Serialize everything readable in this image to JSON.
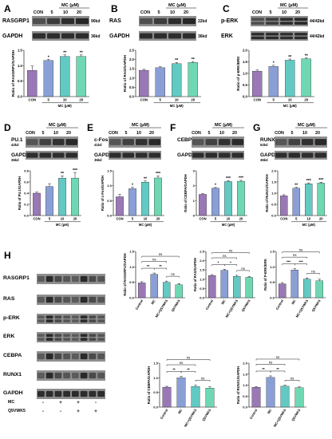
{
  "colors": {
    "con": "#9a78b5",
    "mc5": "#8a9fd6",
    "mc10": "#62c9c3",
    "mc20": "#6fd8b2",
    "h_control": "#9a78b5",
    "h_mc": "#8a9fd6",
    "h_mc_q": "#62c9c3",
    "h_q": "#6fd8b2"
  },
  "top_panels": [
    {
      "letter": "A",
      "protein_label": "RASGRP1",
      "protein_kd": "90kd",
      "loading_label": "GAPDH",
      "loading_kd": "36kd",
      "header_groups": "MC  (μM)",
      "header_lanes": [
        "CON",
        "5",
        "10",
        "20"
      ]
    },
    {
      "letter": "B",
      "protein_label": "RAS",
      "protein_kd": "22kd",
      "loading_label": "GAPDH",
      "loading_kd": "36kd",
      "header_groups": "MC  (μM)",
      "header_lanes": [
        "CON",
        "5",
        "10",
        "20"
      ]
    },
    {
      "letter": "C",
      "protein_label": "p-ERK",
      "protein_kd": "44/42kd",
      "loading_label": "ERK",
      "loading_kd": "44/42kd",
      "header_groups": "MC  (μM)",
      "header_lanes": [
        "CON",
        "5",
        "10",
        "20"
      ]
    }
  ],
  "mid_panels": [
    {
      "letter": "D",
      "protein_label": "PU.1",
      "protein_kd": "42kd",
      "loading_label": "GAPDH",
      "loading_kd": "36kd",
      "header_groups": "MC  (μM)",
      "header_lanes": [
        "CON",
        "5",
        "10",
        "20"
      ]
    },
    {
      "letter": "E",
      "protein_label": "c-Fos",
      "protein_kd": "41kd",
      "loading_label": "GAPDH",
      "loading_kd": "36kd",
      "header_groups": "MC  (μM)",
      "header_lanes": [
        "CON",
        "5",
        "10",
        "20"
      ]
    },
    {
      "letter": "F",
      "protein_label": "CEBPA",
      "protein_kd": "",
      "loading_label": "GAPDH",
      "loading_kd": "",
      "header_groups": "MC  (μM)",
      "header_lanes": [
        "CON",
        "5",
        "10",
        "20"
      ]
    },
    {
      "letter": "G",
      "protein_label": "RUNX1",
      "protein_kd": "52kd",
      "loading_label": "GAPDH",
      "loading_kd": "36kd",
      "header_groups": "MC  (μM)",
      "header_lanes": [
        "CON",
        "5",
        "10",
        "20"
      ]
    }
  ],
  "panel_h": {
    "letter": "H",
    "blot_labels": [
      "RASGRP1",
      "RAS",
      "p-ERK",
      "ERK",
      "CEBPA",
      "RUNX1",
      "GAPDH"
    ],
    "treatment_rows": [
      {
        "label": "MC",
        "marks": [
          "-",
          "+",
          "+",
          "-"
        ]
      },
      {
        "label": "Q5VWK5",
        "marks": [
          "-",
          "-",
          "+",
          "+"
        ]
      }
    ]
  },
  "chart_data": [
    {
      "type": "bar",
      "id": "A",
      "ylabel": "Ratio of RASGRP1/GAPDH",
      "xlabel": "MC (μM)",
      "categories": [
        "CON",
        "5",
        "10",
        "20"
      ],
      "values": [
        0.85,
        1.17,
        1.3,
        1.3
      ],
      "errors": [
        0.14,
        0.03,
        0.05,
        0.05
      ],
      "ylim": [
        0,
        1.5
      ],
      "yticks": [
        "0.0",
        "0.5",
        "1.0",
        "1.5"
      ],
      "sig": [
        "",
        "*",
        "**",
        "**"
      ]
    },
    {
      "type": "bar",
      "id": "B",
      "ylabel": "Ratio of RAS/GAPDH",
      "xlabel": "MC (μM)",
      "categories": [
        "CON",
        "5",
        "10",
        "20"
      ],
      "values": [
        1.42,
        1.56,
        1.78,
        1.84
      ],
      "errors": [
        0.05,
        0.05,
        0.06,
        0.05
      ],
      "ylim": [
        0,
        2.5
      ],
      "yticks": [
        "0.0",
        "0.5",
        "1.0",
        "1.5",
        "2.0",
        "2.5"
      ],
      "sig": [
        "",
        "",
        "**",
        "**"
      ]
    },
    {
      "type": "bar",
      "id": "C",
      "ylabel": "Ratio of p-ERK/ERK",
      "xlabel": "MC (μM)",
      "categories": [
        "CON",
        "5",
        "10",
        "20"
      ],
      "values": [
        1.1,
        1.3,
        1.57,
        1.63
      ],
      "errors": [
        0.05,
        0.05,
        0.05,
        0.04
      ],
      "ylim": [
        0,
        2.0
      ],
      "yticks": [
        "0.0",
        "0.5",
        "1.0",
        "1.5",
        "2.0"
      ],
      "sig": [
        "",
        "*",
        "**",
        "**"
      ]
    },
    {
      "type": "bar",
      "id": "D",
      "ylabel": "Ratio of PU.1/GAPDH",
      "xlabel": "MC (μM)",
      "categories": [
        "CON",
        "5",
        "10",
        "20"
      ],
      "values": [
        0.4,
        0.52,
        0.67,
        0.67
      ],
      "errors": [
        0.02,
        0.05,
        0.04,
        0.1
      ],
      "ylim": [
        0,
        0.8
      ],
      "yticks": [
        "0.0",
        "0.2",
        "0.4",
        "0.6",
        "0.8"
      ],
      "sig": [
        "",
        "",
        "**",
        "***"
      ]
    },
    {
      "type": "bar",
      "id": "E",
      "ylabel": "Ratio of c-Fos/GAPDH",
      "xlabel": "MC (μM)",
      "categories": [
        "CON",
        "5",
        "10",
        "20"
      ],
      "values": [
        0.63,
        0.9,
        1.12,
        1.26
      ],
      "errors": [
        0.08,
        0.05,
        0.04,
        0.07
      ],
      "ylim": [
        0,
        1.5
      ],
      "yticks": [
        "0.0",
        "0.5",
        "1.0",
        "1.5"
      ],
      "sig": [
        "",
        "*",
        "**",
        "***"
      ]
    },
    {
      "type": "bar",
      "id": "F",
      "ylabel": "Ratio of CEBPA/GAPDH",
      "xlabel": "MC (μM)",
      "categories": [
        "CON",
        "5",
        "10",
        "20"
      ],
      "values": [
        1.42,
        1.83,
        2.28,
        2.3
      ],
      "errors": [
        0.05,
        0.05,
        0.06,
        0.06
      ],
      "ylim": [
        0,
        3
      ],
      "yticks": [
        "0",
        "1",
        "2",
        "3"
      ],
      "sig": [
        "",
        "*",
        "***",
        "***"
      ]
    },
    {
      "type": "bar",
      "id": "G",
      "ylabel": "Ratio of RUNX1/GAPDH",
      "xlabel": "MC (μM)",
      "categories": [
        "CON",
        "5",
        "10",
        "20"
      ],
      "values": [
        0.88,
        1.22,
        1.42,
        1.45
      ],
      "errors": [
        0.05,
        0.04,
        0.04,
        0.04
      ],
      "ylim": [
        0,
        2.0
      ],
      "yticks": [
        "0.0",
        "0.5",
        "1.0",
        "1.5",
        "2.0"
      ],
      "sig": [
        "",
        "**",
        "***",
        "***"
      ]
    },
    {
      "type": "bar",
      "id": "H1",
      "ylabel": "Ratio of RASGRP1/GAPDH",
      "xlabel": "",
      "categories": [
        "Control",
        "MC",
        "MC+Q5VWK5",
        "Q5VWK5"
      ],
      "values": [
        0.48,
        0.76,
        0.5,
        0.42
      ],
      "errors": [
        0.04,
        0.04,
        0.04,
        0.04
      ],
      "ylim": [
        0,
        1.5
      ],
      "yticks": [
        "0.0",
        "0.5",
        "1.0",
        "1.5"
      ],
      "brackets": [
        {
          "a": 0,
          "b": 1,
          "label": "**"
        },
        {
          "a": 1,
          "b": 2,
          "label": "**"
        },
        {
          "a": 2,
          "b": 3,
          "label": "ns"
        },
        {
          "a": 0,
          "b": 2,
          "label": "ns"
        },
        {
          "a": 0,
          "b": 3,
          "label": "ns"
        }
      ]
    },
    {
      "type": "bar",
      "id": "H2",
      "ylabel": "Ratio of RAS/GAPDH",
      "xlabel": "",
      "categories": [
        "Control",
        "MC",
        "MC+Q5VWK5",
        "Q5VWK5"
      ],
      "values": [
        1.2,
        1.48,
        1.15,
        1.1
      ],
      "errors": [
        0.05,
        0.05,
        0.06,
        0.05
      ],
      "ylim": [
        0,
        2.5
      ],
      "yticks": [
        "0.0",
        "0.5",
        "1.0",
        "1.5",
        "2.0",
        "2.5"
      ],
      "brackets": [
        {
          "a": 0,
          "b": 1,
          "label": "*"
        },
        {
          "a": 1,
          "b": 2,
          "label": "*"
        },
        {
          "a": 2,
          "b": 3,
          "label": "ns"
        },
        {
          "a": 0,
          "b": 2,
          "label": "ns"
        },
        {
          "a": 0,
          "b": 3,
          "label": "ns"
        }
      ]
    },
    {
      "type": "bar",
      "id": "H3",
      "ylabel": "Ratio of P-ERK/ERK",
      "xlabel": "",
      "categories": [
        "Control",
        "MC",
        "MC+Q5VWK5",
        "Q5VWK5"
      ],
      "values": [
        0.45,
        0.9,
        0.6,
        0.55
      ],
      "errors": [
        0.04,
        0.04,
        0.04,
        0.05
      ],
      "ylim": [
        0,
        1.5
      ],
      "yticks": [
        "0.0",
        "0.5",
        "1.0",
        "1.5"
      ],
      "brackets": [
        {
          "a": 0,
          "b": 1,
          "label": "***"
        },
        {
          "a": 1,
          "b": 2,
          "label": "***"
        },
        {
          "a": 2,
          "b": 3,
          "label": "ns"
        },
        {
          "a": 0,
          "b": 2,
          "label": "ns"
        },
        {
          "a": 0,
          "b": 3,
          "label": "ns"
        }
      ]
    },
    {
      "type": "bar",
      "id": "H4",
      "ylabel": "Ratio of CEBPA/GAPDH",
      "xlabel": "",
      "categories": [
        "Control",
        "MC",
        "MC+Q5VWK5",
        "Q5VWK5"
      ],
      "values": [
        0.68,
        1.0,
        0.7,
        0.65
      ],
      "errors": [
        0.03,
        0.05,
        0.05,
        0.04
      ],
      "ylim": [
        0,
        1.5
      ],
      "yticks": [
        "0.0",
        "0.5",
        "1.0",
        "1.5"
      ],
      "brackets": [
        {
          "a": 0,
          "b": 1,
          "label": "**"
        },
        {
          "a": 1,
          "b": 2,
          "label": "**"
        },
        {
          "a": 2,
          "b": 3,
          "label": "ns"
        },
        {
          "a": 0,
          "b": 2,
          "label": "ns"
        },
        {
          "a": 0,
          "b": 3,
          "label": "ns"
        }
      ]
    },
    {
      "type": "bar",
      "id": "H5",
      "ylabel": "Ratio of RUNX1/GAPDH",
      "xlabel": "",
      "categories": [
        "Control",
        "MC",
        "MC+Q5VWK5",
        "Q5VWK5"
      ],
      "values": [
        0.9,
        1.35,
        0.95,
        0.88
      ],
      "errors": [
        0.03,
        0.07,
        0.05,
        0.04
      ],
      "ylim": [
        0,
        2.0
      ],
      "yticks": [
        "0.0",
        "0.5",
        "1.0",
        "1.5",
        "2.0"
      ],
      "brackets": [
        {
          "a": 0,
          "b": 1,
          "label": "**"
        },
        {
          "a": 1,
          "b": 2,
          "label": "**"
        },
        {
          "a": 2,
          "b": 3,
          "label": "ns"
        },
        {
          "a": 0,
          "b": 2,
          "label": "ns"
        },
        {
          "a": 0,
          "b": 3,
          "label": "ns"
        }
      ]
    }
  ]
}
